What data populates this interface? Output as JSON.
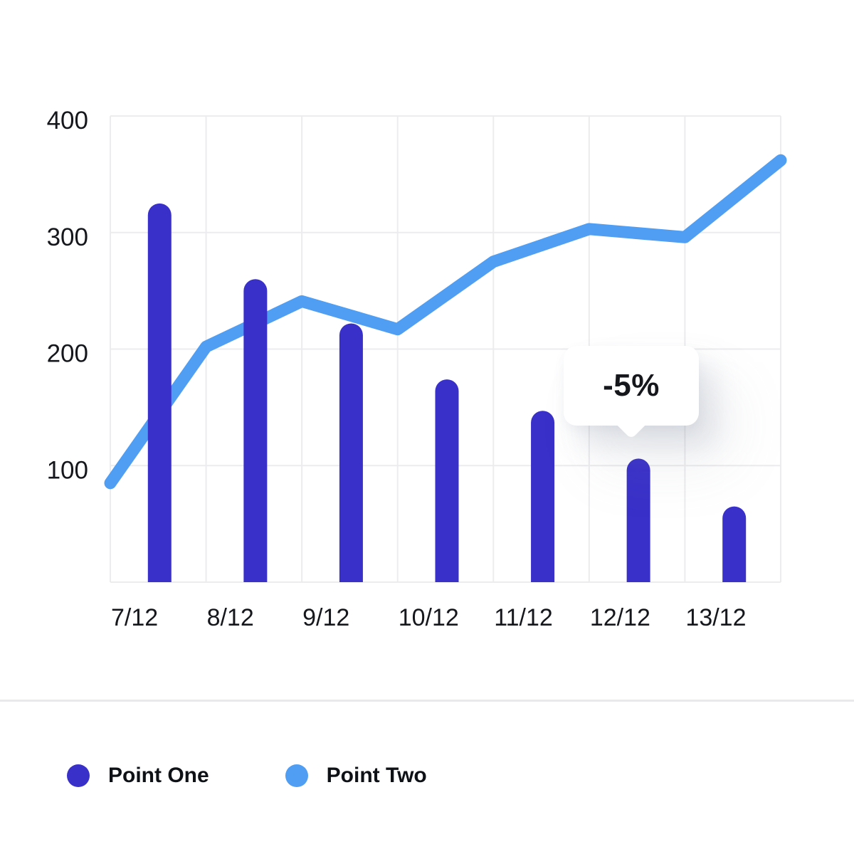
{
  "chart_data": {
    "type": "combo",
    "categories": [
      "7/12",
      "8/12",
      "9/12",
      "10/12",
      "11/12",
      "12/12",
      "13/12"
    ],
    "series": [
      {
        "name": "Point One",
        "type": "bar",
        "color": "#3930c9",
        "values": [
          325,
          260,
          222,
          174,
          147,
          106,
          65
        ]
      },
      {
        "name": "Point Two",
        "type": "line",
        "color": "#4f9ef3",
        "x_units": "column-boundary-index",
        "x": [
          0,
          1,
          2,
          3,
          4,
          5,
          6,
          7
        ],
        "values": [
          85,
          202,
          241,
          217,
          275,
          303,
          296,
          362
        ]
      }
    ],
    "y_ticks": [
      100,
      200,
      300,
      400
    ],
    "ylim": [
      0,
      400
    ],
    "xlabel": "",
    "ylabel": "",
    "title": "",
    "grid": true,
    "legend_position": "bottom",
    "annotation": {
      "text": "-5%",
      "target_category": "12/12"
    }
  },
  "legend": {
    "items": [
      {
        "label": "Point One",
        "color": "#3930c9"
      },
      {
        "label": "Point Two",
        "color": "#4f9ef3"
      }
    ]
  },
  "colors": {
    "background": "#ffffff",
    "gridline": "#ececee",
    "axis_text": "#15171c",
    "divider": "#e9e9eb",
    "tooltip_bg": "#ffffff",
    "tooltip_text": "#15171c"
  }
}
